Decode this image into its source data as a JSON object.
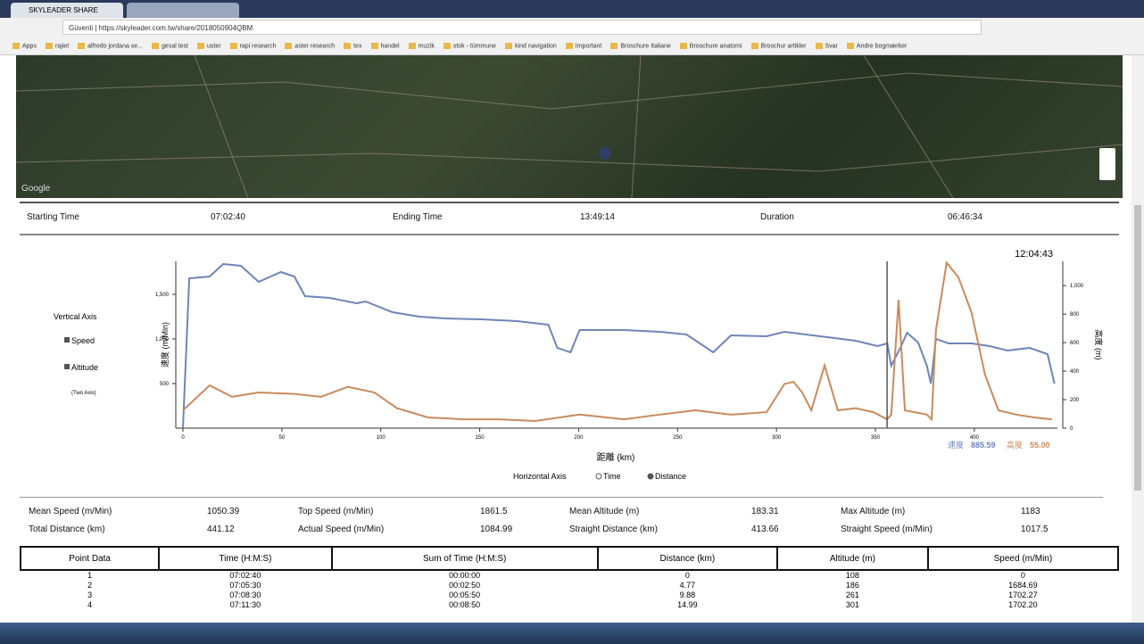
{
  "browser": {
    "tab": "SKYLEADER SHARE",
    "secure": "Güvenli",
    "url": "https://skyleader.com.tw/share/2018050904QBM"
  },
  "bookmarks": [
    "Apps",
    "rajiet",
    "alfredo jordana se...",
    "gesal test",
    "uster",
    "rapi research",
    "aster research",
    "tex",
    "handel",
    "muzik",
    "stok - tümmune",
    "kind navigation",
    "Important",
    "Broschure Italiane",
    "Broschure anatomi",
    "Broschur artikler",
    "Svar",
    "Andre bogmærker"
  ],
  "map": {
    "attribution": "Google"
  },
  "summary": [
    {
      "label": "Starting Time",
      "value": "07:02:40"
    },
    {
      "label": "Ending Time",
      "value": "13:49:14"
    },
    {
      "label": "Duration",
      "value": "06:46:34"
    }
  ],
  "chart_data": {
    "type": "line",
    "xlabel": "距離 (km)",
    "ylabel": "速度 (m/Min)",
    "y2label": "高度 (m)",
    "xlim": [
      0,
      442
    ],
    "xticks": [
      0,
      50,
      100,
      150,
      200,
      250,
      300,
      350,
      400
    ],
    "ylim": [
      0,
      1870
    ],
    "yticks": [
      {
        "value": 500,
        "label": "500"
      },
      {
        "value": 1000,
        "label": "1,000"
      },
      {
        "value": 1500,
        "label": "1,500"
      }
    ],
    "y2lim": [
      0,
      1170
    ],
    "y2ticks": [
      0,
      200,
      400,
      600,
      800,
      {
        "value": 1000,
        "label": "1,000"
      }
    ],
    "series": [
      {
        "name": "Speed",
        "color": "#6f84b8",
        "x": [
          0,
          3.2,
          13.5,
          20.3,
          29.3,
          38.3,
          49.5,
          56.3,
          61.7,
          74.3,
          87.8,
          92.3,
          105.9,
          119.4,
          132.9,
          150.9,
          168.9,
          184.7,
          189.2,
          195.9,
          200.5,
          223,
          241,
          254.5,
          268,
          277,
          295,
          304,
          322,
          340,
          351,
          356,
          358,
          362.6,
          366,
          371.6,
          376,
          378,
          380.6,
          387,
          398.6,
          407.7,
          416.7,
          428,
          437,
          440.5
        ],
        "values": [
          0,
          1680,
          1700,
          1840,
          1820,
          1640,
          1750,
          1700,
          1480,
          1460,
          1400,
          1420,
          1300,
          1250,
          1230,
          1220,
          1200,
          1160,
          900,
          850,
          1100,
          1100,
          1080,
          1050,
          850,
          1040,
          1030,
          1080,
          1030,
          980,
          920,
          950,
          700,
          900,
          1070,
          960,
          700,
          500,
          1000,
          950,
          950,
          920,
          870,
          900,
          830,
          500
        ]
      },
      {
        "name": "Altitude",
        "color": "#c98a5c",
        "axis": "y2",
        "x": [
          0,
          13.5,
          24.8,
          38.3,
          56.3,
          69.8,
          83.3,
          96.8,
          108.1,
          123.9,
          141.9,
          159.9,
          177.9,
          200.5,
          223,
          241,
          259,
          277,
          295,
          304,
          308.6,
          313,
          317.6,
          324.3,
          331,
          340,
          349,
          355.9,
          358,
          361.7,
          364.9,
          376,
          378.4,
          380.6,
          386,
          391.9,
          398.6,
          405.4,
          412.2,
          421.2,
          430.2,
          439.2
        ],
        "values": [
          125,
          300,
          220,
          250,
          240,
          220,
          290,
          250,
          140,
          75,
          62,
          62,
          50,
          95,
          62,
          95,
          125,
          95,
          112,
          310,
          325,
          250,
          125,
          440,
          125,
          140,
          112,
          62,
          95,
          900,
          125,
          95,
          62,
          690,
          1160,
          1060,
          810,
          375,
          125,
          95,
          75,
          62
        ]
      }
    ],
    "cursor": {
      "time": "12:04:43",
      "x": 355.9,
      "readouts": [
        {
          "label": "速度",
          "value": 885.59
        },
        {
          "label": "高度",
          "value": 55,
          "value_label": "55.00"
        }
      ]
    },
    "vertical_axis": {
      "title": "Vertical Axis",
      "note": "(Two Axis)"
    },
    "horizontal_axis": {
      "title": "Horizontal Axis",
      "options": [
        "Time",
        "Distance"
      ]
    }
  },
  "stats": [
    {
      "label": "Mean Speed (m/Min)",
      "value": "1050.39"
    },
    {
      "label": "Top Speed (m/Min)",
      "value": "1861.5"
    },
    {
      "label": "Mean Altitude (m)",
      "value": "183.31"
    },
    {
      "label": "Max Altitude (m)",
      "value": "1183"
    },
    {
      "label": "Total Distance (km)",
      "value": "441.12"
    },
    {
      "label": "Actual Speed (m/Min)",
      "value": "1084.99"
    },
    {
      "label": "Straight Distance (km)",
      "value": "413.66"
    },
    {
      "label": "Straight Speed (m/Min)",
      "value": "1017.5"
    }
  ],
  "table": {
    "headers": [
      "Point Data",
      "Time (H:M:S)",
      "Sum of Time (H:M:S)",
      "Distance (km)",
      "Altitude (m)",
      "Speed (m/Min)"
    ],
    "rows": [
      [
        "1",
        "07:02:40",
        "00:00:00",
        "0",
        "108",
        "0"
      ],
      [
        "2",
        "07:05:30",
        "00:02:50",
        "4.77",
        "186",
        "1684.69"
      ],
      [
        "3",
        "07:08:30",
        "00:05:50",
        "9.88",
        "261",
        "1702.27"
      ],
      [
        "4",
        "07:11:30",
        "00:08:50",
        "14.99",
        "301",
        "1702.20"
      ]
    ]
  }
}
